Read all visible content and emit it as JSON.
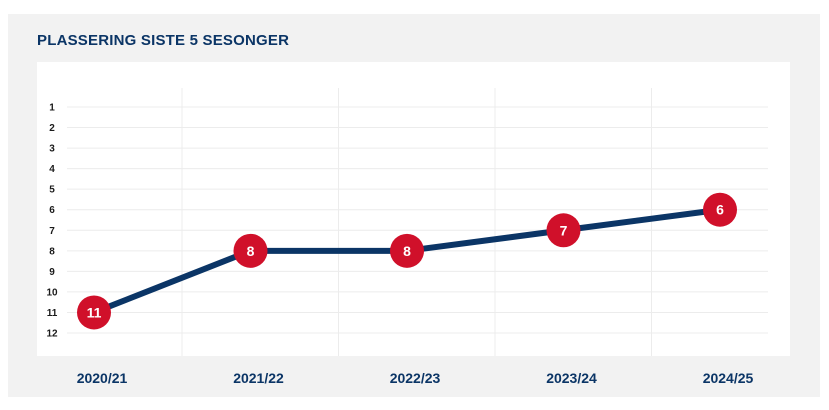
{
  "chart_data": {
    "type": "line",
    "title": "PLASSERING SISTE 5 SESONGER",
    "xlabel": "",
    "ylabel": "",
    "categories": [
      "2020/21",
      "2021/22",
      "2022/23",
      "2023/24",
      "2024/25"
    ],
    "series": [
      {
        "values": [
          11,
          8,
          8,
          7,
          6
        ]
      }
    ],
    "yticks": [
      "1",
      "2",
      "3",
      "4",
      "5",
      "6",
      "7",
      "8",
      "9",
      "10",
      "11",
      "12"
    ],
    "ylim": [
      1,
      12
    ],
    "y_inverted": true,
    "grid": true,
    "legend": "none",
    "colors": {
      "line": "#0b3566",
      "marker": "#d0102a",
      "marker_text": "#ffffff",
      "title": "#0b3566",
      "card_background": "#f2f2f2",
      "plot_background": "#ffffff",
      "grid": "#ececec"
    }
  }
}
